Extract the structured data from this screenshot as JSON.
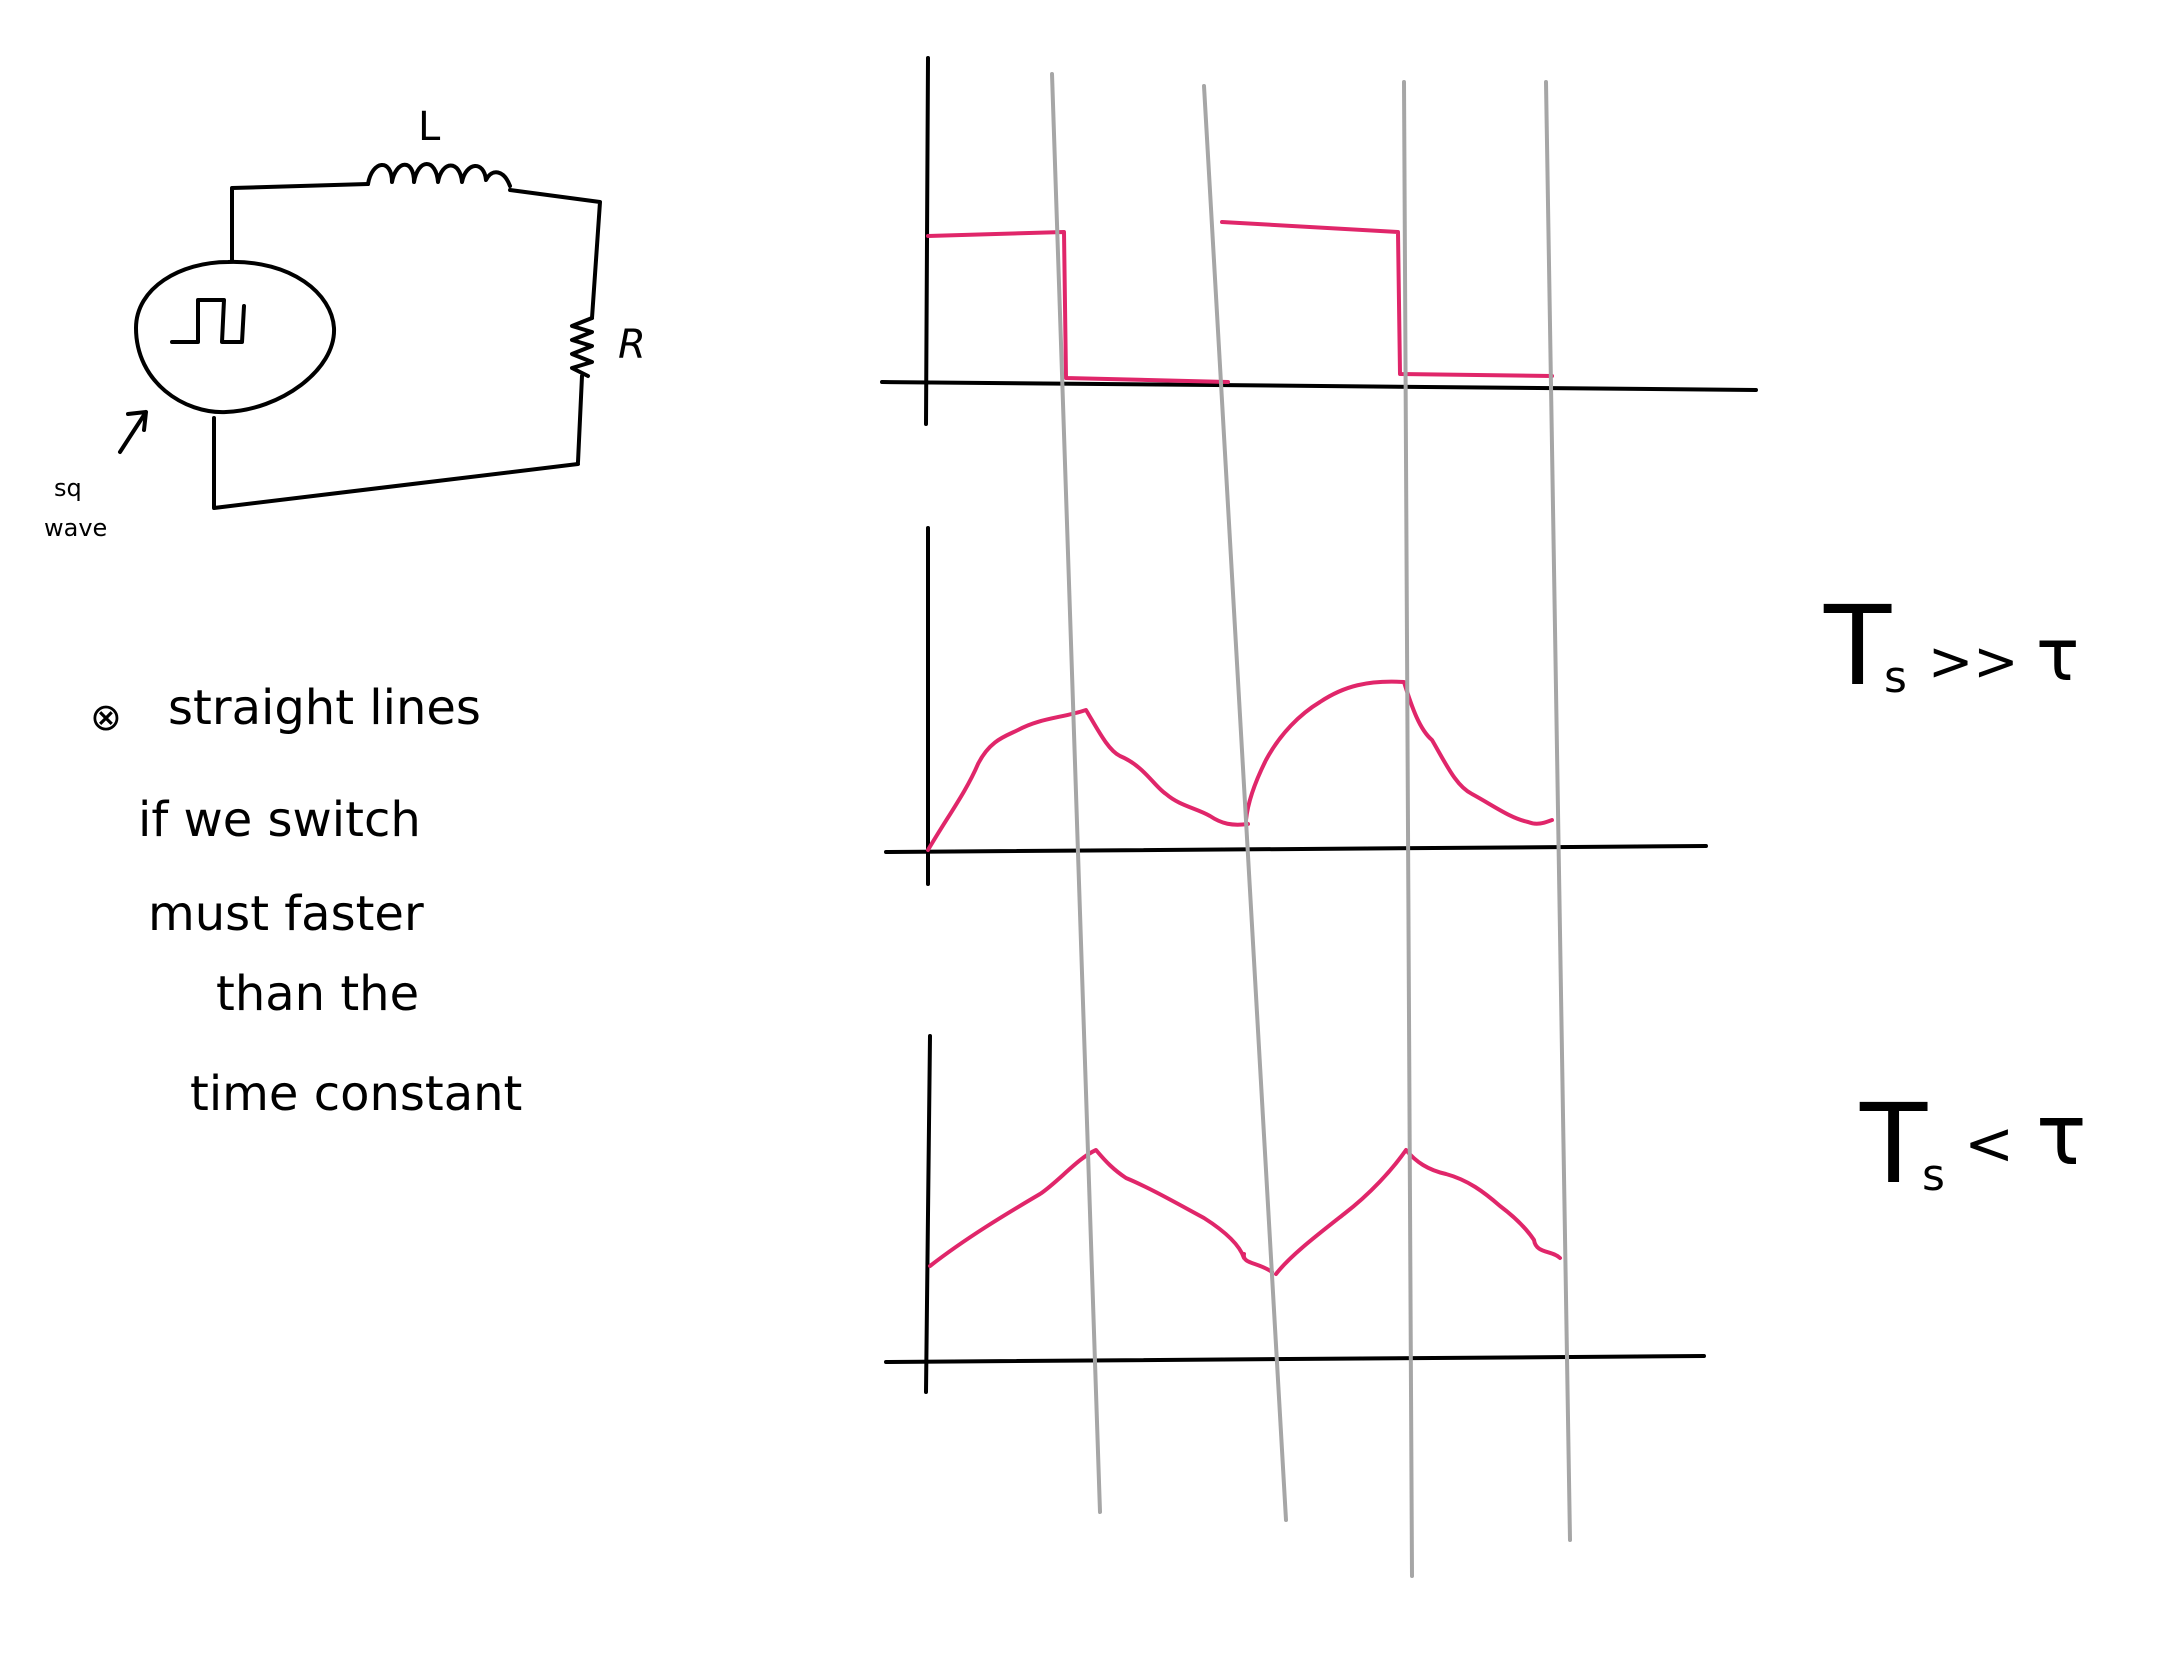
{
  "colors": {
    "ink": "#000000",
    "waveform": "#e0266a",
    "guide": "#a6a6a6",
    "background": "#ffffff"
  },
  "circuit": {
    "inductor_label": "L",
    "resistor_label": "R",
    "source_symbol": "square-wave-source-icon",
    "source_label_line1": "sq",
    "source_label_line2": "wave"
  },
  "note": {
    "marker": "⊗",
    "lines": [
      "straight lines",
      "if we switch",
      "must faster",
      "than the",
      "time constant"
    ]
  },
  "conditions": {
    "case1": {
      "T": "T",
      "sub": "s",
      "relation": ">>",
      "tau": "τ"
    },
    "case2": {
      "T": "T",
      "sub": "s",
      "relation": "<",
      "tau": "τ"
    }
  }
}
